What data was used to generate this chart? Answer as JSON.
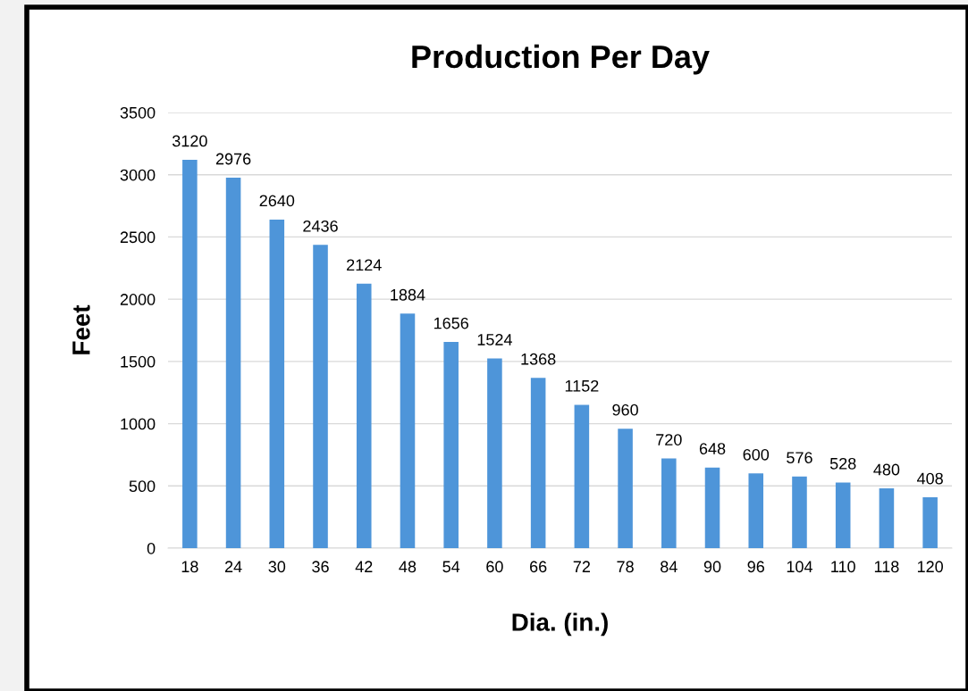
{
  "chart_data": {
    "type": "bar",
    "title": "Production Per Day",
    "xlabel": "Dia. (in.)",
    "ylabel": "Feet",
    "categories": [
      "18",
      "24",
      "30",
      "36",
      "42",
      "48",
      "54",
      "60",
      "66",
      "72",
      "78",
      "84",
      "90",
      "96",
      "104",
      "110",
      "118",
      "120"
    ],
    "values": [
      3120,
      2976,
      2640,
      2436,
      2124,
      1884,
      1656,
      1524,
      1368,
      1152,
      960,
      720,
      648,
      600,
      576,
      528,
      480,
      408
    ],
    "color": "#4e95d9",
    "ylim": [
      0,
      3500
    ],
    "yticks": [
      0,
      500,
      1000,
      1500,
      2000,
      2500,
      3000,
      3500
    ],
    "grid": "y",
    "data_labels": true
  }
}
